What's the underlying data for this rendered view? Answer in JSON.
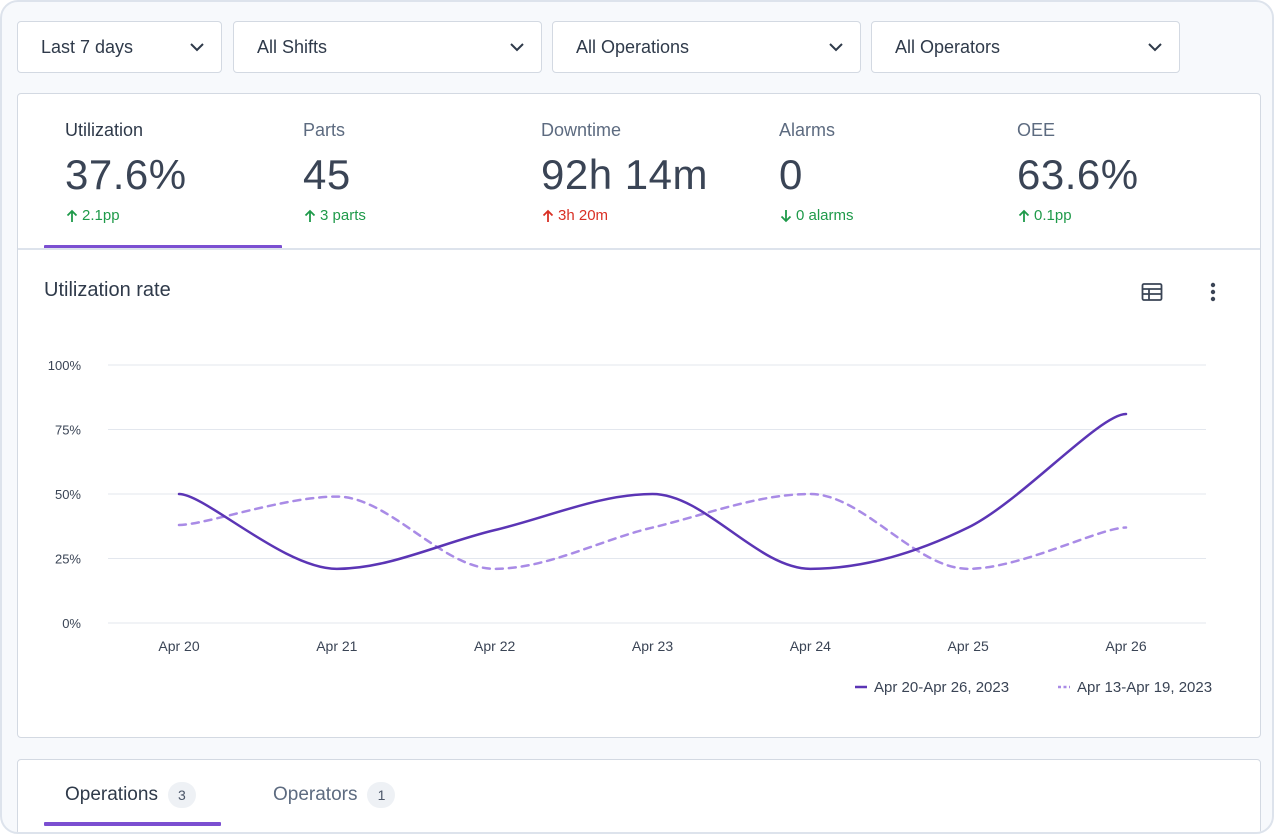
{
  "filters": [
    {
      "label": "Last 7 days"
    },
    {
      "label": "All Shifts"
    },
    {
      "label": "All Operations"
    },
    {
      "label": "All Operators"
    }
  ],
  "kpis": [
    {
      "label": "Utilization",
      "value": "37.6%",
      "delta": "2.1pp",
      "delta_direction": "up",
      "delta_status": "good",
      "active": true
    },
    {
      "label": "Parts",
      "value": "45",
      "delta": "3 parts",
      "delta_direction": "up",
      "delta_status": "good",
      "active": false
    },
    {
      "label": "Downtime",
      "value": "92h 14m",
      "delta": "3h 20m",
      "delta_direction": "up",
      "delta_status": "bad",
      "active": false
    },
    {
      "label": "Alarms",
      "value": "0",
      "delta": "0 alarms",
      "delta_direction": "down",
      "delta_status": "good",
      "active": false
    },
    {
      "label": "OEE",
      "value": "63.6%",
      "delta": "0.1pp",
      "delta_direction": "up",
      "delta_status": "good",
      "active": false
    }
  ],
  "chart": {
    "title": "Utilization rate",
    "table_icon": "table-icon",
    "more_icon": "more-vertical-icon"
  },
  "chart_data": {
    "type": "line",
    "title": "Utilization rate",
    "xlabel": "",
    "ylabel": "",
    "categories": [
      "Apr 20",
      "Apr 21",
      "Apr 22",
      "Apr 23",
      "Apr 24",
      "Apr 25",
      "Apr 26"
    ],
    "y_ticks": [
      "0%",
      "25%",
      "50%",
      "75%",
      "100%"
    ],
    "ylim": [
      0,
      100
    ],
    "grid": true,
    "legend": "bottom-right",
    "series": [
      {
        "name": "Apr 20-Apr 26, 2023",
        "values": [
          50,
          21,
          36,
          50,
          21,
          37,
          81
        ],
        "style": "solid",
        "color": "#5b35b5"
      },
      {
        "name": "Apr 13-Apr 19, 2023",
        "values": [
          38,
          49,
          21,
          37,
          50,
          21,
          37
        ],
        "style": "dashed",
        "color": "#a98be6"
      }
    ]
  },
  "tabs": [
    {
      "label": "Operations",
      "count": "3",
      "active": true
    },
    {
      "label": "Operators",
      "count": "1",
      "active": false
    }
  ],
  "colors": {
    "accent": "#7b4fd1",
    "good": "#1f9a4a",
    "bad": "#d93025"
  }
}
